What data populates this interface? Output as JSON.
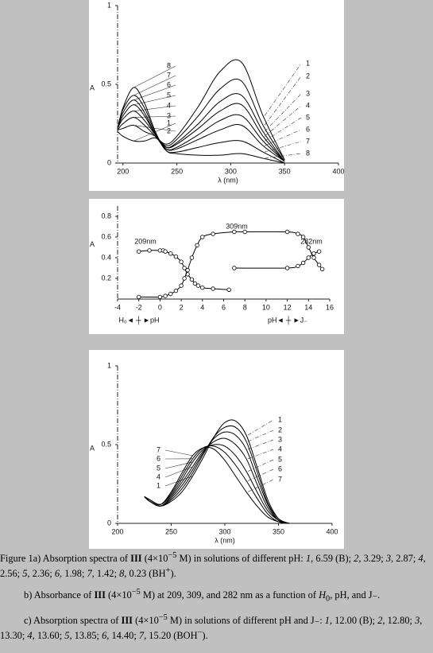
{
  "chart_data": [
    {
      "type": "line",
      "ylabel": "A",
      "xlabel": "λ (nm)",
      "xlim": [
        195,
        400
      ],
      "ylim": [
        0,
        1
      ],
      "xticks": [
        200,
        250,
        300,
        350,
        400
      ],
      "yticks": [
        0,
        0.5,
        1
      ],
      "x": [
        195,
        200,
        210,
        220,
        230,
        240,
        250,
        270,
        290,
        310,
        330,
        350
      ],
      "series": [
        {
          "name": "1",
          "color": "#000000",
          "values": [
            0.2,
            0.17,
            0.14,
            0.14,
            0.16,
            0.12,
            0.17,
            0.36,
            0.58,
            0.64,
            0.3,
            0.02
          ]
        },
        {
          "name": "2",
          "color": "#000000",
          "values": [
            0.21,
            0.22,
            0.24,
            0.2,
            0.17,
            0.11,
            0.15,
            0.3,
            0.47,
            0.52,
            0.24,
            0.02
          ]
        },
        {
          "name": "3",
          "color": "#000000",
          "values": [
            0.21,
            0.25,
            0.29,
            0.24,
            0.17,
            0.1,
            0.13,
            0.25,
            0.39,
            0.43,
            0.2,
            0.01
          ]
        },
        {
          "name": "4",
          "color": "#000000",
          "values": [
            0.22,
            0.28,
            0.33,
            0.27,
            0.18,
            0.1,
            0.12,
            0.22,
            0.33,
            0.37,
            0.17,
            0.01
          ]
        },
        {
          "name": "5",
          "color": "#000000",
          "values": [
            0.22,
            0.3,
            0.37,
            0.3,
            0.18,
            0.09,
            0.1,
            0.18,
            0.27,
            0.3,
            0.14,
            0.01
          ]
        },
        {
          "name": "6",
          "color": "#000000",
          "values": [
            0.22,
            0.32,
            0.4,
            0.32,
            0.18,
            0.09,
            0.09,
            0.15,
            0.21,
            0.24,
            0.11,
            0.01
          ]
        },
        {
          "name": "7",
          "color": "#000000",
          "values": [
            0.22,
            0.34,
            0.43,
            0.35,
            0.19,
            0.08,
            0.07,
            0.1,
            0.13,
            0.14,
            0.07,
            0
          ]
        },
        {
          "name": "8",
          "color": "#000000",
          "values": [
            0.22,
            0.35,
            0.48,
            0.38,
            0.2,
            0.08,
            0.06,
            0.05,
            0.05,
            0.06,
            0.03,
            0
          ]
        }
      ]
    },
    {
      "type": "line",
      "markers": true,
      "ylabel": "A",
      "xlim": [
        -4,
        16
      ],
      "ylim": [
        0,
        0.9
      ],
      "xticks": [
        -4,
        -2,
        0,
        2,
        4,
        6,
        8,
        10,
        12,
        14,
        16
      ],
      "yticks": [
        0.2,
        0.4,
        0.6,
        0.8
      ],
      "annotations": [
        "H₀◄ ┼ ►pH",
        "pH◄ ┼ ►J₋"
      ],
      "series": [
        {
          "name": "209nm",
          "color": "#000000",
          "x": [
            -2,
            -1,
            0,
            0.3,
            0.5,
            1,
            1.5,
            2,
            2.3,
            2.6,
            3,
            3.3,
            3.6,
            4,
            5,
            6.5
          ],
          "values": [
            0.46,
            0.47,
            0.47,
            0.47,
            0.46,
            0.44,
            0.41,
            0.36,
            0.3,
            0.24,
            0.19,
            0.15,
            0.13,
            0.11,
            0.1,
            0.09
          ]
        },
        {
          "name": "309nm",
          "color": "#000000",
          "x": [
            -2,
            0,
            0.5,
            1,
            1.5,
            2,
            2.3,
            2.6,
            3,
            3.5,
            4,
            5,
            7,
            8,
            12,
            13,
            13.5,
            14,
            14.5,
            15,
            15.3
          ],
          "values": [
            0.02,
            0.02,
            0.03,
            0.05,
            0.08,
            0.13,
            0.2,
            0.28,
            0.4,
            0.52,
            0.6,
            0.63,
            0.65,
            0.65,
            0.65,
            0.63,
            0.6,
            0.5,
            0.4,
            0.33,
            0.29
          ]
        },
        {
          "name": "282nm",
          "color": "#000000",
          "x": [
            7,
            12,
            13,
            13.5,
            14,
            14.5,
            15
          ],
          "values": [
            0.3,
            0.3,
            0.32,
            0.35,
            0.4,
            0.44,
            0.46
          ]
        }
      ]
    },
    {
      "type": "line",
      "ylabel": "A",
      "xlabel": "λ (nm)",
      "xlim": [
        200,
        400
      ],
      "ylim": [
        0,
        1
      ],
      "xticks": [
        200,
        250,
        300,
        350,
        400
      ],
      "yticks": [
        0,
        0.5,
        1
      ],
      "x": [
        225,
        230,
        240,
        250,
        260,
        270,
        280,
        290,
        300,
        310,
        320,
        330,
        340,
        350,
        360
      ],
      "series": [
        {
          "name": "1",
          "color": "#000000",
          "values": [
            0.17,
            0.14,
            0.11,
            0.14,
            0.2,
            0.3,
            0.42,
            0.55,
            0.64,
            0.65,
            0.56,
            0.36,
            0.15,
            0.03,
            0
          ]
        },
        {
          "name": "2",
          "color": "#000000",
          "values": [
            0.17,
            0.14,
            0.11,
            0.15,
            0.22,
            0.32,
            0.44,
            0.55,
            0.61,
            0.61,
            0.52,
            0.33,
            0.13,
            0.03,
            0
          ]
        },
        {
          "name": "3",
          "color": "#000000",
          "values": [
            0.17,
            0.14,
            0.11,
            0.16,
            0.24,
            0.34,
            0.45,
            0.54,
            0.58,
            0.56,
            0.47,
            0.29,
            0.12,
            0.02,
            0
          ]
        },
        {
          "name": "4",
          "color": "#000000",
          "values": [
            0.17,
            0.14,
            0.11,
            0.17,
            0.26,
            0.36,
            0.46,
            0.52,
            0.54,
            0.5,
            0.41,
            0.25,
            0.1,
            0.02,
            0
          ]
        },
        {
          "name": "5",
          "color": "#000000",
          "values": [
            0.17,
            0.15,
            0.12,
            0.18,
            0.28,
            0.39,
            0.47,
            0.5,
            0.49,
            0.43,
            0.33,
            0.2,
            0.08,
            0.02,
            0
          ]
        },
        {
          "name": "6",
          "color": "#000000",
          "values": [
            0.17,
            0.15,
            0.12,
            0.19,
            0.3,
            0.41,
            0.48,
            0.49,
            0.45,
            0.37,
            0.27,
            0.16,
            0.06,
            0.01,
            0
          ]
        },
        {
          "name": "7",
          "color": "#000000",
          "values": [
            0.17,
            0.15,
            0.12,
            0.2,
            0.32,
            0.43,
            0.48,
            0.47,
            0.4,
            0.3,
            0.2,
            0.11,
            0.04,
            0.01,
            0
          ]
        }
      ]
    }
  ],
  "caption": [
    [
      {
        "text": "Figure 1a) Absorption spectra of "
      },
      {
        "text": "III",
        "style": "bold"
      },
      {
        "text": " (4×10"
      },
      {
        "text": "−5",
        "style": "sup"
      },
      {
        "text": " M) in solutions of different pH: "
      },
      {
        "text": "1,",
        "style": "italic"
      },
      {
        "text": " 6.59 (B); "
      },
      {
        "text": "2,",
        "style": "italic"
      },
      {
        "text": " 3.29; "
      },
      {
        "text": "3,",
        "style": "italic"
      },
      {
        "text": " 2.87; "
      },
      {
        "text": "4,",
        "style": "italic"
      },
      {
        "text": " 2.56; "
      },
      {
        "text": "5,",
        "style": "italic"
      },
      {
        "text": " 2.36; "
      },
      {
        "text": "6,",
        "style": "italic"
      },
      {
        "text": " 1.98; "
      },
      {
        "text": "7,",
        "style": "italic"
      },
      {
        "text": " 1.42; "
      },
      {
        "text": "8,",
        "style": "italic"
      },
      {
        "text": " 0.23 (BH"
      },
      {
        "text": "+",
        "style": "sup"
      },
      {
        "text": ")."
      }
    ],
    [
      {
        "text": "b) Absorbance of "
      },
      {
        "text": "III",
        "style": "bold"
      },
      {
        "text": " (4×10"
      },
      {
        "text": "−5",
        "style": "sup"
      },
      {
        "text": " M) at 209, 309, and 282 nm as a function of "
      },
      {
        "text": "H",
        "style": "italic"
      },
      {
        "text": "0",
        "style": "sub"
      },
      {
        "text": ", pH, and J₋."
      }
    ],
    [
      {
        "text": "c) Absorption spectra of "
      },
      {
        "text": "III",
        "style": "bold"
      },
      {
        "text": " (4×10"
      },
      {
        "text": "−5",
        "style": "sup"
      },
      {
        "text": " M) in solutions of different pH and J₋: "
      },
      {
        "text": "1,",
        "style": "italic"
      },
      {
        "text": " 12.00 (B); "
      },
      {
        "text": "2,",
        "style": "italic"
      },
      {
        "text": " 12.80; "
      },
      {
        "text": "3,",
        "style": "italic"
      },
      {
        "text": " 13.30; "
      },
      {
        "text": "4,",
        "style": "italic"
      },
      {
        "text": " 13.60; "
      },
      {
        "text": "5,",
        "style": "italic"
      },
      {
        "text": " 13.85; "
      },
      {
        "text": "6,",
        "style": "italic"
      },
      {
        "text": " 14.40; "
      },
      {
        "text": "7,",
        "style": "italic"
      },
      {
        "text": " 15.20 (BOH"
      },
      {
        "text": "−",
        "style": "sup"
      },
      {
        "text": ")."
      }
    ]
  ]
}
